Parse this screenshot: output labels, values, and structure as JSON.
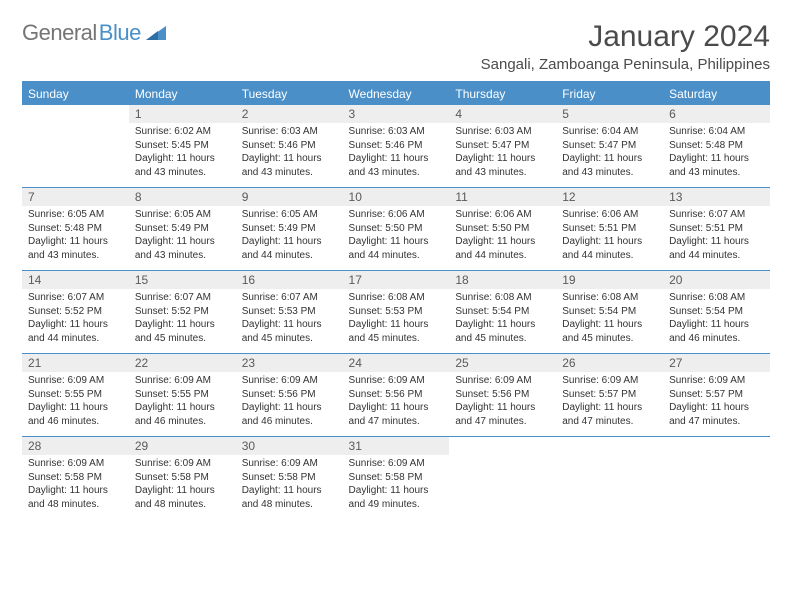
{
  "brand": {
    "general": "General",
    "blue": "Blue"
  },
  "title": "January 2024",
  "location": "Sangali, Zamboanga Peninsula, Philippines",
  "colors": {
    "header_bg": "#4a8fc8",
    "header_text": "#ffffff",
    "daynum_bg": "#eeeeee",
    "border": "#4a8fc8",
    "body_text": "#333333",
    "title_text": "#4b4b4b",
    "logo_gray": "#757575",
    "logo_blue": "#4a8fc8",
    "background": "#ffffff"
  },
  "typography": {
    "month_title_pt": 30,
    "location_pt": 15,
    "header_pt": 12,
    "daynum_pt": 12,
    "detail_pt": 10
  },
  "dayHeaders": [
    "Sunday",
    "Monday",
    "Tuesday",
    "Wednesday",
    "Thursday",
    "Friday",
    "Saturday"
  ],
  "weeks": [
    [
      null,
      {
        "n": "1",
        "sr": "6:02 AM",
        "ss": "5:45 PM",
        "dl": "11 hours and 43 minutes."
      },
      {
        "n": "2",
        "sr": "6:03 AM",
        "ss": "5:46 PM",
        "dl": "11 hours and 43 minutes."
      },
      {
        "n": "3",
        "sr": "6:03 AM",
        "ss": "5:46 PM",
        "dl": "11 hours and 43 minutes."
      },
      {
        "n": "4",
        "sr": "6:03 AM",
        "ss": "5:47 PM",
        "dl": "11 hours and 43 minutes."
      },
      {
        "n": "5",
        "sr": "6:04 AM",
        "ss": "5:47 PM",
        "dl": "11 hours and 43 minutes."
      },
      {
        "n": "6",
        "sr": "6:04 AM",
        "ss": "5:48 PM",
        "dl": "11 hours and 43 minutes."
      }
    ],
    [
      {
        "n": "7",
        "sr": "6:05 AM",
        "ss": "5:48 PM",
        "dl": "11 hours and 43 minutes."
      },
      {
        "n": "8",
        "sr": "6:05 AM",
        "ss": "5:49 PM",
        "dl": "11 hours and 43 minutes."
      },
      {
        "n": "9",
        "sr": "6:05 AM",
        "ss": "5:49 PM",
        "dl": "11 hours and 44 minutes."
      },
      {
        "n": "10",
        "sr": "6:06 AM",
        "ss": "5:50 PM",
        "dl": "11 hours and 44 minutes."
      },
      {
        "n": "11",
        "sr": "6:06 AM",
        "ss": "5:50 PM",
        "dl": "11 hours and 44 minutes."
      },
      {
        "n": "12",
        "sr": "6:06 AM",
        "ss": "5:51 PM",
        "dl": "11 hours and 44 minutes."
      },
      {
        "n": "13",
        "sr": "6:07 AM",
        "ss": "5:51 PM",
        "dl": "11 hours and 44 minutes."
      }
    ],
    [
      {
        "n": "14",
        "sr": "6:07 AM",
        "ss": "5:52 PM",
        "dl": "11 hours and 44 minutes."
      },
      {
        "n": "15",
        "sr": "6:07 AM",
        "ss": "5:52 PM",
        "dl": "11 hours and 45 minutes."
      },
      {
        "n": "16",
        "sr": "6:07 AM",
        "ss": "5:53 PM",
        "dl": "11 hours and 45 minutes."
      },
      {
        "n": "17",
        "sr": "6:08 AM",
        "ss": "5:53 PM",
        "dl": "11 hours and 45 minutes."
      },
      {
        "n": "18",
        "sr": "6:08 AM",
        "ss": "5:54 PM",
        "dl": "11 hours and 45 minutes."
      },
      {
        "n": "19",
        "sr": "6:08 AM",
        "ss": "5:54 PM",
        "dl": "11 hours and 45 minutes."
      },
      {
        "n": "20",
        "sr": "6:08 AM",
        "ss": "5:54 PM",
        "dl": "11 hours and 46 minutes."
      }
    ],
    [
      {
        "n": "21",
        "sr": "6:09 AM",
        "ss": "5:55 PM",
        "dl": "11 hours and 46 minutes."
      },
      {
        "n": "22",
        "sr": "6:09 AM",
        "ss": "5:55 PM",
        "dl": "11 hours and 46 minutes."
      },
      {
        "n": "23",
        "sr": "6:09 AM",
        "ss": "5:56 PM",
        "dl": "11 hours and 46 minutes."
      },
      {
        "n": "24",
        "sr": "6:09 AM",
        "ss": "5:56 PM",
        "dl": "11 hours and 47 minutes."
      },
      {
        "n": "25",
        "sr": "6:09 AM",
        "ss": "5:56 PM",
        "dl": "11 hours and 47 minutes."
      },
      {
        "n": "26",
        "sr": "6:09 AM",
        "ss": "5:57 PM",
        "dl": "11 hours and 47 minutes."
      },
      {
        "n": "27",
        "sr": "6:09 AM",
        "ss": "5:57 PM",
        "dl": "11 hours and 47 minutes."
      }
    ],
    [
      {
        "n": "28",
        "sr": "6:09 AM",
        "ss": "5:58 PM",
        "dl": "11 hours and 48 minutes."
      },
      {
        "n": "29",
        "sr": "6:09 AM",
        "ss": "5:58 PM",
        "dl": "11 hours and 48 minutes."
      },
      {
        "n": "30",
        "sr": "6:09 AM",
        "ss": "5:58 PM",
        "dl": "11 hours and 48 minutes."
      },
      {
        "n": "31",
        "sr": "6:09 AM",
        "ss": "5:58 PM",
        "dl": "11 hours and 49 minutes."
      },
      null,
      null,
      null
    ]
  ],
  "labels": {
    "sunrise": "Sunrise:",
    "sunset": "Sunset:",
    "daylight": "Daylight:"
  }
}
